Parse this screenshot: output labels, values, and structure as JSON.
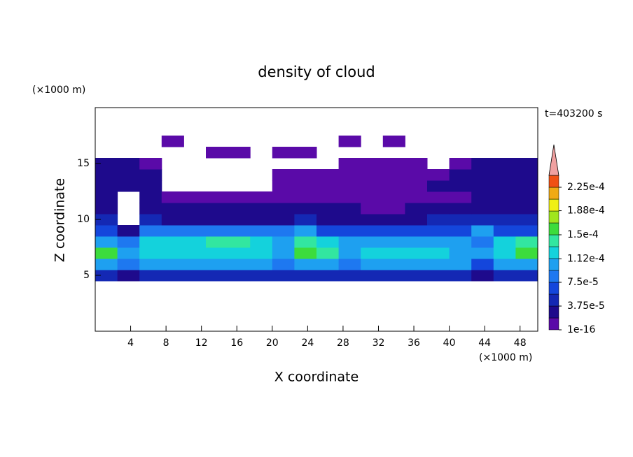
{
  "chart_data": {
    "type": "contour",
    "title": "density of cloud",
    "x_label": "X coordinate",
    "y_label": "Z coordinate",
    "x_unit": "(×1000 m)",
    "y_unit": "(×1000 m)",
    "time_label": "t=403200 s",
    "xlim": [
      0,
      50
    ],
    "ylim": [
      0,
      20
    ],
    "xticks": [
      4,
      8,
      12,
      16,
      20,
      24,
      28,
      32,
      36,
      40,
      44,
      48
    ],
    "yticks": [
      5,
      10,
      15
    ],
    "x": [
      1.25,
      3.75,
      6.25,
      8.75,
      11.25,
      13.75,
      16.25,
      18.75,
      21.25,
      23.75,
      26.25,
      28.75,
      31.25,
      33.75,
      36.25,
      38.75,
      41.25,
      43.75,
      46.25,
      48.75
    ],
    "y": [
      5,
      6,
      7,
      8,
      9,
      10,
      11,
      12,
      13,
      14,
      15,
      16,
      17
    ],
    "z": [
      [
        4.5e-05,
        2.5e-05,
        4.5e-05,
        4.5e-05,
        4.5e-05,
        4.5e-05,
        4.5e-05,
        4.5e-05,
        4.5e-05,
        4.5e-05,
        4.5e-05,
        4.5e-05,
        4.5e-05,
        4.5e-05,
        4.5e-05,
        4.5e-05,
        4.5e-05,
        2.5e-05,
        4.5e-05,
        4.5e-05
      ],
      [
        0.00011,
        8e-05,
        0.00011,
        0.00011,
        0.00011,
        0.00011,
        0.00011,
        0.00011,
        8e-05,
        0.00011,
        0.00011,
        8e-05,
        0.00011,
        0.00011,
        0.00011,
        0.00011,
        9.5e-05,
        6e-05,
        0.00011,
        0.00011
      ],
      [
        0.00016,
        9.5e-05,
        0.00013,
        0.00013,
        0.00013,
        0.00013,
        0.00013,
        0.00013,
        9.5e-05,
        0.00016,
        0.000145,
        9.5e-05,
        0.00013,
        0.00013,
        0.00013,
        0.00013,
        0.00011,
        9.5e-05,
        0.00013,
        0.00016
      ],
      [
        9.5e-05,
        8e-05,
        0.00013,
        0.00013,
        0.00013,
        0.000145,
        0.000145,
        0.00013,
        9.5e-05,
        0.000145,
        0.00013,
        9.5e-05,
        9.5e-05,
        9.5e-05,
        9.5e-05,
        9.5e-05,
        9.5e-05,
        8e-05,
        0.00013,
        0.000145
      ],
      [
        6e-05,
        2.5e-05,
        8e-05,
        8e-05,
        8e-05,
        8e-05,
        8e-05,
        8e-05,
        8e-05,
        9.5e-05,
        6e-05,
        6e-05,
        6e-05,
        6e-05,
        6e-05,
        6e-05,
        6e-05,
        9.5e-05,
        6e-05,
        6e-05
      ],
      [
        4.5e-05,
        null,
        4.5e-05,
        2.5e-05,
        2.5e-05,
        2.5e-05,
        2.5e-05,
        2.5e-05,
        2.5e-05,
        4.5e-05,
        2.5e-05,
        2.5e-05,
        2.5e-05,
        2.5e-05,
        2.5e-05,
        4.5e-05,
        4.5e-05,
        4.5e-05,
        4.5e-05,
        4.5e-05
      ],
      [
        2.5e-05,
        null,
        2.5e-05,
        2.5e-05,
        2.5e-05,
        2.5e-05,
        2.5e-05,
        2.5e-05,
        2.5e-05,
        2.5e-05,
        2.5e-05,
        2.5e-05,
        1e-05,
        1e-05,
        2.5e-05,
        2.5e-05,
        2.5e-05,
        2.5e-05,
        2.5e-05,
        2.5e-05
      ],
      [
        2.5e-05,
        null,
        2.5e-05,
        1e-05,
        1e-05,
        1e-05,
        1e-05,
        1e-05,
        1e-05,
        1e-05,
        1e-05,
        1e-05,
        1e-05,
        1e-05,
        1e-05,
        1e-05,
        1e-05,
        2.5e-05,
        2.5e-05,
        2.5e-05
      ],
      [
        2.5e-05,
        2.5e-05,
        2.5e-05,
        null,
        null,
        null,
        null,
        null,
        1e-05,
        1e-05,
        1e-05,
        1e-05,
        1e-05,
        1e-05,
        1e-05,
        2.5e-05,
        2.5e-05,
        2.5e-05,
        2.5e-05,
        2.5e-05
      ],
      [
        2.5e-05,
        2.5e-05,
        2.5e-05,
        null,
        null,
        null,
        null,
        null,
        1e-05,
        1e-05,
        1e-05,
        1e-05,
        1e-05,
        1e-05,
        1e-05,
        1e-05,
        2.5e-05,
        2.5e-05,
        2.5e-05,
        2.5e-05
      ],
      [
        2.5e-05,
        2.5e-05,
        1e-05,
        null,
        null,
        null,
        null,
        null,
        null,
        null,
        null,
        1e-05,
        1e-05,
        1e-05,
        1e-05,
        null,
        1e-05,
        2.5e-05,
        2.5e-05,
        2.5e-05
      ],
      [
        null,
        null,
        null,
        null,
        null,
        1e-05,
        1e-05,
        null,
        1e-05,
        1e-05,
        null,
        null,
        null,
        null,
        null,
        null,
        null,
        null,
        null,
        null
      ],
      [
        null,
        null,
        null,
        1e-05,
        null,
        null,
        null,
        null,
        null,
        null,
        null,
        1e-05,
        null,
        1e-05,
        null,
        null,
        null,
        null,
        null,
        null
      ]
    ],
    "levels": [
      1e-16,
      1.875e-05,
      3.75e-05,
      5.625e-05,
      7.5e-05,
      9.375e-05,
      0.0001125,
      0.00013125,
      0.00015,
      0.00016875,
      0.0001875,
      0.00020625,
      0.000225,
      0.00024375
    ],
    "colors": [
      "#5a0aa8",
      "#1e0a8c",
      "#1428b4",
      "#1446dc",
      "#1e78f0",
      "#1ea0f0",
      "#14d2dc",
      "#32e6a0",
      "#3cdc3c",
      "#a0e61e",
      "#f0f014",
      "#f0aa14",
      "#f05014"
    ],
    "extend_color": "#f0a0a0",
    "colorbar_ticks": [
      {
        "value": 1e-16,
        "label": "1e-16"
      },
      {
        "value": 3.75e-05,
        "label": "3.75e-5"
      },
      {
        "value": 7.5e-05,
        "label": "7.5e-5"
      },
      {
        "value": 0.000112,
        "label": "1.12e-4"
      },
      {
        "value": 0.00015,
        "label": "1.5e-4"
      },
      {
        "value": 0.000188,
        "label": "1.88e-4"
      },
      {
        "value": 0.000225,
        "label": "2.25e-4"
      }
    ]
  }
}
